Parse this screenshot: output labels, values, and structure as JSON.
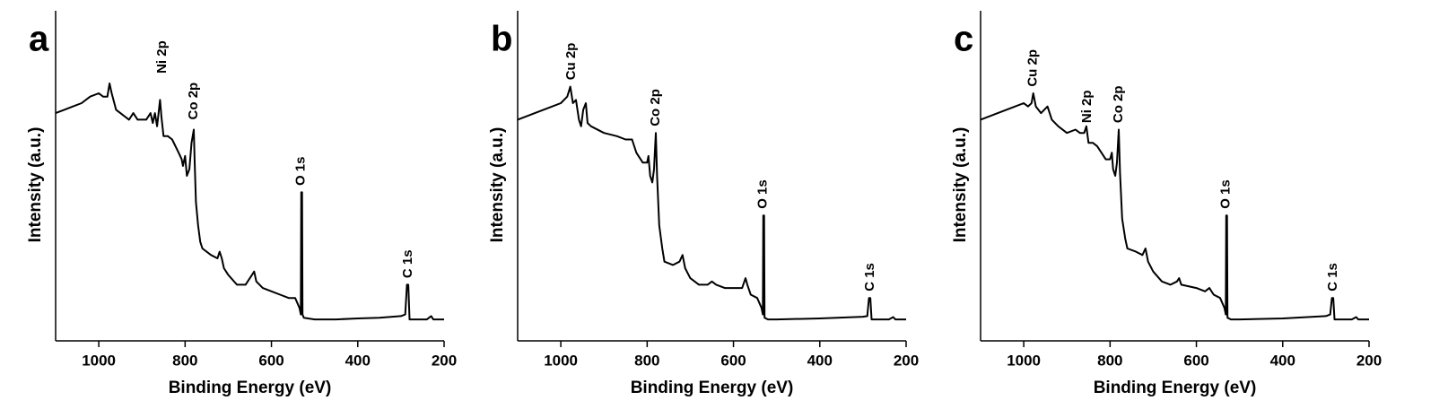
{
  "chart_data": [
    {
      "type": "line",
      "panel_label": "a",
      "x_label": "Binding Energy (eV)",
      "y_label": "Intensity (a.u.)",
      "color": "#000000",
      "xlim": [
        1100,
        200
      ],
      "xticks": [
        1000,
        800,
        600,
        400,
        200
      ],
      "ylim": [
        0,
        100
      ],
      "x": [
        1100,
        1080,
        1060,
        1040,
        1020,
        1000,
        990,
        980,
        975,
        970,
        960,
        950,
        930,
        920,
        910,
        890,
        880,
        875,
        870,
        865,
        858,
        855,
        850,
        840,
        830,
        815,
        808,
        805,
        800,
        796,
        790,
        785,
        780,
        778,
        775,
        770,
        765,
        760,
        740,
        725,
        720,
        715,
        710,
        700,
        680,
        660,
        645,
        640,
        635,
        620,
        600,
        580,
        560,
        545,
        535,
        532,
        531,
        529,
        528,
        525,
        500,
        450,
        400,
        350,
        300,
        290,
        286,
        283,
        280,
        240,
        230,
        225,
        200
      ],
      "values": [
        69,
        70,
        71,
        72,
        74,
        75,
        74,
        74,
        78,
        75,
        70,
        69,
        67,
        69,
        67,
        67,
        69,
        66,
        69,
        65,
        73,
        68,
        62,
        62,
        61,
        57,
        55,
        53,
        56,
        50,
        52,
        60,
        64,
        55,
        42,
        35,
        30,
        28,
        26,
        25,
        27,
        25,
        22,
        20,
        17,
        17,
        20,
        21,
        18,
        16,
        15,
        14,
        13,
        13,
        10,
        8,
        45,
        45,
        8,
        7,
        6.5,
        6.5,
        6.8,
        7,
        7.5,
        8,
        17,
        17,
        6.5,
        6.5,
        7.5,
        6.5,
        6.5
      ],
      "annotations": [
        {
          "text": "Ni 2p",
          "x": 853,
          "y": 81
        },
        {
          "text": "Co 2p",
          "x": 780,
          "y": 67
        },
        {
          "text": "O 1s",
          "x": 531,
          "y": 47
        },
        {
          "text": "C 1s",
          "x": 283,
          "y": 19
        }
      ]
    },
    {
      "type": "line",
      "panel_label": "b",
      "x_label": "Binding Energy (eV)",
      "y_label": "Intensity (a.u.)",
      "color": "#000000",
      "xlim": [
        1100,
        200
      ],
      "xticks": [
        1000,
        800,
        600,
        400,
        200
      ],
      "ylim": [
        0,
        100
      ],
      "x": [
        1100,
        1060,
        1020,
        1000,
        985,
        978,
        972,
        965,
        958,
        953,
        948,
        942,
        938,
        930,
        900,
        870,
        850,
        835,
        825,
        820,
        810,
        800,
        797,
        793,
        788,
        784,
        780,
        777,
        772,
        765,
        760,
        740,
        725,
        718,
        712,
        700,
        680,
        660,
        650,
        640,
        620,
        600,
        580,
        572,
        568,
        560,
        545,
        535,
        532,
        531,
        529,
        528,
        520,
        500,
        400,
        300,
        290,
        286,
        283,
        280,
        240,
        230,
        225,
        200
      ],
      "values": [
        67,
        69,
        71,
        72,
        74,
        77,
        72,
        73,
        67,
        65,
        70,
        72,
        66,
        65,
        63,
        62,
        61,
        61,
        57,
        56,
        54,
        54,
        56,
        50,
        48,
        52,
        63,
        50,
        35,
        28,
        24,
        23,
        24,
        26,
        22,
        19,
        17,
        17,
        18,
        17,
        16,
        16,
        16,
        19,
        17,
        14,
        13,
        10,
        8,
        38,
        38,
        7,
        6.5,
        6.5,
        6.8,
        7.3,
        7.5,
        13,
        13,
        6.5,
        6.5,
        7.2,
        6.5,
        6.5
      ],
      "annotations": [
        {
          "text": "Cu 2p",
          "x": 975,
          "y": 79
        },
        {
          "text": "Co 2p",
          "x": 780,
          "y": 65
        },
        {
          "text": "O 1s",
          "x": 531,
          "y": 40
        },
        {
          "text": "C 1s",
          "x": 283,
          "y": 15
        }
      ]
    },
    {
      "type": "line",
      "panel_label": "c",
      "x_label": "Binding Energy (eV)",
      "y_label": "Intensity (a.u.)",
      "color": "#000000",
      "xlim": [
        1100,
        200
      ],
      "xticks": [
        1000,
        800,
        600,
        400,
        200
      ],
      "ylim": [
        0,
        100
      ],
      "x": [
        1100,
        1060,
        1020,
        1000,
        990,
        982,
        978,
        972,
        960,
        945,
        935,
        920,
        900,
        880,
        870,
        860,
        855,
        850,
        840,
        830,
        820,
        810,
        800,
        796,
        793,
        788,
        784,
        780,
        777,
        772,
        765,
        760,
        740,
        725,
        718,
        712,
        700,
        680,
        660,
        645,
        640,
        635,
        600,
        580,
        570,
        560,
        545,
        535,
        532,
        531,
        529,
        528,
        520,
        500,
        400,
        300,
        290,
        286,
        283,
        280,
        240,
        230,
        225,
        200
      ],
      "values": [
        67,
        69,
        71,
        72,
        71,
        72,
        75,
        71,
        69,
        71,
        67,
        65,
        63,
        64,
        63,
        63,
        65,
        60,
        60,
        59,
        57,
        55,
        55,
        57,
        52,
        50,
        54,
        64,
        51,
        37,
        31,
        28,
        27,
        26,
        28,
        24,
        21,
        18,
        17,
        18,
        19,
        17,
        16,
        15,
        16,
        14,
        13,
        10,
        8,
        38,
        38,
        7,
        6.5,
        6.5,
        6.8,
        7.5,
        8,
        13,
        13,
        6.5,
        6.5,
        7.2,
        6.5,
        6.5
      ],
      "annotations": [
        {
          "text": "Cu 2p",
          "x": 978,
          "y": 77
        },
        {
          "text": "Ni 2p",
          "x": 853,
          "y": 66
        },
        {
          "text": "Co 2p",
          "x": 780,
          "y": 66
        },
        {
          "text": "O 1s",
          "x": 531,
          "y": 40
        },
        {
          "text": "C 1s",
          "x": 283,
          "y": 15
        }
      ]
    }
  ]
}
